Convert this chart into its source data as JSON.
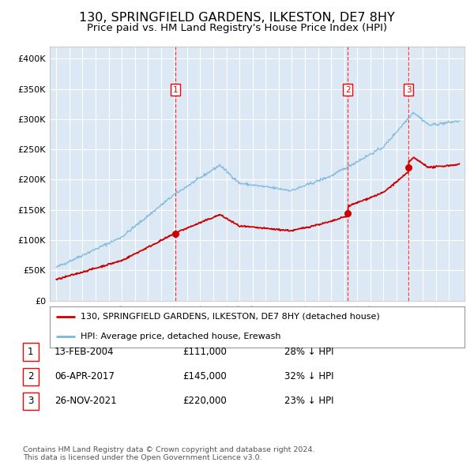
{
  "title": "130, SPRINGFIELD GARDENS, ILKESTON, DE7 8HY",
  "subtitle": "Price paid vs. HM Land Registry's House Price Index (HPI)",
  "title_fontsize": 11.5,
  "subtitle_fontsize": 9.5,
  "background_color": "#ffffff",
  "plot_bg_color": "#dce9f5",
  "grid_color": "#ffffff",
  "hpi_color": "#7ab8d9",
  "price_color": "#cc0000",
  "purchases": [
    {
      "date_num": 2004.12,
      "price": 111000,
      "label": "1"
    },
    {
      "date_num": 2017.27,
      "price": 145000,
      "label": "2"
    },
    {
      "date_num": 2021.92,
      "price": 220000,
      "label": "3"
    }
  ],
  "purchase_lines": [
    2004.12,
    2017.27,
    2021.92
  ],
  "legend_entries": [
    "130, SPRINGFIELD GARDENS, ILKESTON, DE7 8HY (detached house)",
    "HPI: Average price, detached house, Erewash"
  ],
  "table_rows": [
    {
      "num": "1",
      "date": "13-FEB-2004",
      "price": "£111,000",
      "pct": "28% ↓ HPI"
    },
    {
      "num": "2",
      "date": "06-APR-2017",
      "price": "£145,000",
      "pct": "32% ↓ HPI"
    },
    {
      "num": "3",
      "date": "26-NOV-2021",
      "price": "£220,000",
      "pct": "23% ↓ HPI"
    }
  ],
  "footer": "Contains HM Land Registry data © Crown copyright and database right 2024.\nThis data is licensed under the Open Government Licence v3.0.",
  "ylim": [
    0,
    420000
  ],
  "xlim": [
    1994.5,
    2026.2
  ],
  "xtick_start": 1995,
  "xtick_end": 2025
}
